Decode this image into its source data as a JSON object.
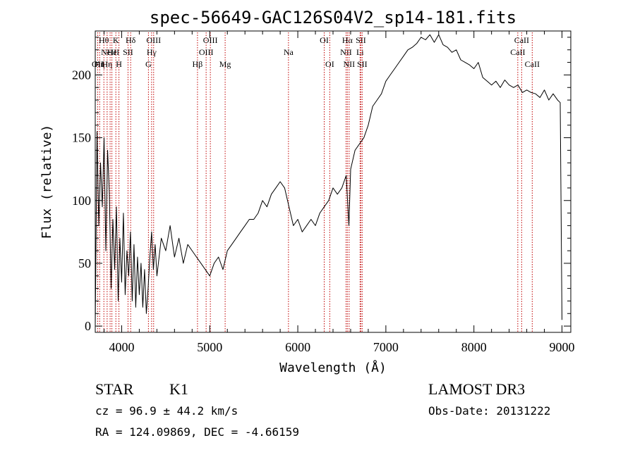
{
  "chart_data": {
    "type": "line",
    "title": "spec-56649-GAC126S04V2_sp14-181.fits",
    "xlabel": "Wavelength (Å)",
    "ylabel": "Flux (relative)",
    "xlim": [
      3700,
      9100
    ],
    "ylim": [
      -5,
      235
    ],
    "grid": false,
    "xticks": [
      {
        "value": 4000,
        "label": "4000"
      },
      {
        "value": 5000,
        "label": "5000"
      },
      {
        "value": 6000,
        "label": "6000"
      },
      {
        "value": 7000,
        "label": "7000"
      },
      {
        "value": 8000,
        "label": "8000"
      },
      {
        "value": 9000,
        "label": "9000"
      }
    ],
    "yticks": [
      {
        "value": 0,
        "label": "0"
      },
      {
        "value": 50,
        "label": "50"
      },
      {
        "value": 100,
        "label": "100"
      },
      {
        "value": 150,
        "label": "150"
      },
      {
        "value": 200,
        "label": "200"
      }
    ],
    "series": [
      {
        "color": "#000000",
        "x": [
          3700,
          3720,
          3740,
          3760,
          3780,
          3800,
          3820,
          3840,
          3860,
          3880,
          3900,
          3920,
          3940,
          3960,
          3980,
          4000,
          4020,
          4040,
          4060,
          4080,
          4100,
          4120,
          4140,
          4160,
          4180,
          4200,
          4220,
          4240,
          4260,
          4280,
          4300,
          4320,
          4340,
          4360,
          4380,
          4400,
          4450,
          4500,
          4550,
          4600,
          4650,
          4700,
          4750,
          4800,
          4850,
          4900,
          4950,
          5000,
          5050,
          5100,
          5150,
          5200,
          5250,
          5300,
          5350,
          5400,
          5450,
          5500,
          5550,
          5600,
          5650,
          5700,
          5750,
          5800,
          5850,
          5900,
          5950,
          6000,
          6050,
          6100,
          6150,
          6200,
          6250,
          6300,
          6350,
          6400,
          6450,
          6500,
          6550,
          6580,
          6600,
          6650,
          6700,
          6750,
          6800,
          6850,
          6900,
          6950,
          7000,
          7050,
          7100,
          7150,
          7200,
          7250,
          7300,
          7350,
          7400,
          7450,
          7500,
          7550,
          7600,
          7650,
          7700,
          7750,
          7800,
          7850,
          7900,
          7950,
          8000,
          8050,
          8100,
          8150,
          8200,
          8250,
          8300,
          8350,
          8400,
          8450,
          8500,
          8550,
          8600,
          8650,
          8700,
          8750,
          8800,
          8850,
          8900,
          8950,
          8980,
          9000
        ],
        "y": [
          0,
          155,
          80,
          130,
          95,
          150,
          60,
          140,
          105,
          30,
          85,
          45,
          95,
          20,
          70,
          35,
          90,
          25,
          60,
          40,
          75,
          20,
          65,
          15,
          55,
          25,
          50,
          15,
          45,
          10,
          30,
          55,
          75,
          45,
          65,
          40,
          70,
          60,
          80,
          55,
          70,
          50,
          65,
          60,
          55,
          50,
          45,
          40,
          50,
          55,
          45,
          60,
          65,
          70,
          75,
          80,
          85,
          85,
          90,
          100,
          95,
          105,
          110,
          115,
          110,
          95,
          80,
          85,
          75,
          80,
          85,
          80,
          90,
          95,
          100,
          110,
          105,
          110,
          120,
          80,
          125,
          140,
          145,
          150,
          160,
          175,
          180,
          185,
          195,
          200,
          205,
          210,
          215,
          220,
          222,
          225,
          230,
          228,
          232,
          226,
          232,
          224,
          222,
          218,
          220,
          212,
          210,
          208,
          205,
          210,
          198,
          195,
          192,
          195,
          190,
          196,
          192,
          190,
          192,
          186,
          188,
          186,
          185,
          182,
          188,
          180,
          185,
          180,
          178,
          5
        ]
      }
    ],
    "lines": [
      {
        "x": 3727,
        "label": "OII",
        "row": 2
      },
      {
        "x": 3750,
        "label": "Hη",
        "row": 2
      },
      {
        "x": 3798,
        "label": "Hθ",
        "row": 0
      },
      {
        "x": 3835,
        "label": "Hη",
        "row": 2
      },
      {
        "x": 3869,
        "label": "NeIII",
        "row": 1
      },
      {
        "x": 3889,
        "label": "He",
        "row": 1
      },
      {
        "x": 3934,
        "label": "K",
        "row": 0
      },
      {
        "x": 3969,
        "label": "H",
        "row": 2
      },
      {
        "x": 4072,
        "label": "SII",
        "row": 1
      },
      {
        "x": 4102,
        "label": "Hδ",
        "row": 0
      },
      {
        "x": 4304,
        "label": "G",
        "row": 2
      },
      {
        "x": 4340,
        "label": "Hγ",
        "row": 1
      },
      {
        "x": 4363,
        "label": "OIII",
        "row": 0
      },
      {
        "x": 4861,
        "label": "Hβ",
        "row": 2
      },
      {
        "x": 4959,
        "label": "OIII",
        "row": 1
      },
      {
        "x": 5007,
        "label": "OIII",
        "row": 0
      },
      {
        "x": 5175,
        "label": "Mg",
        "row": 2
      },
      {
        "x": 5894,
        "label": "Na",
        "row": 1
      },
      {
        "x": 6300,
        "label": "OI",
        "row": 0
      },
      {
        "x": 6363,
        "label": "OI",
        "row": 2
      },
      {
        "x": 6548,
        "label": "NII",
        "row": 1
      },
      {
        "x": 6563,
        "label": "Hα",
        "row": 0
      },
      {
        "x": 6583,
        "label": "NII",
        "row": 2
      },
      {
        "x": 6707,
        "label": "Li",
        "row": 1
      },
      {
        "x": 6716,
        "label": "SII",
        "row": 0
      },
      {
        "x": 6731,
        "label": "SII",
        "row": 2
      },
      {
        "x": 8498,
        "label": "CaII",
        "row": 1
      },
      {
        "x": 8542,
        "label": "CaII",
        "row": 0
      },
      {
        "x": 8662,
        "label": "CaII",
        "row": 2
      }
    ]
  },
  "info": {
    "class": "STAR",
    "subclass": "K1",
    "cz": "cz = 96.9 ± 44.2 km/s",
    "radec": "RA = 124.09869, DEC =  -4.66159",
    "survey": "LAMOST DR3",
    "obsdate": "Obs-Date: 20131222"
  }
}
